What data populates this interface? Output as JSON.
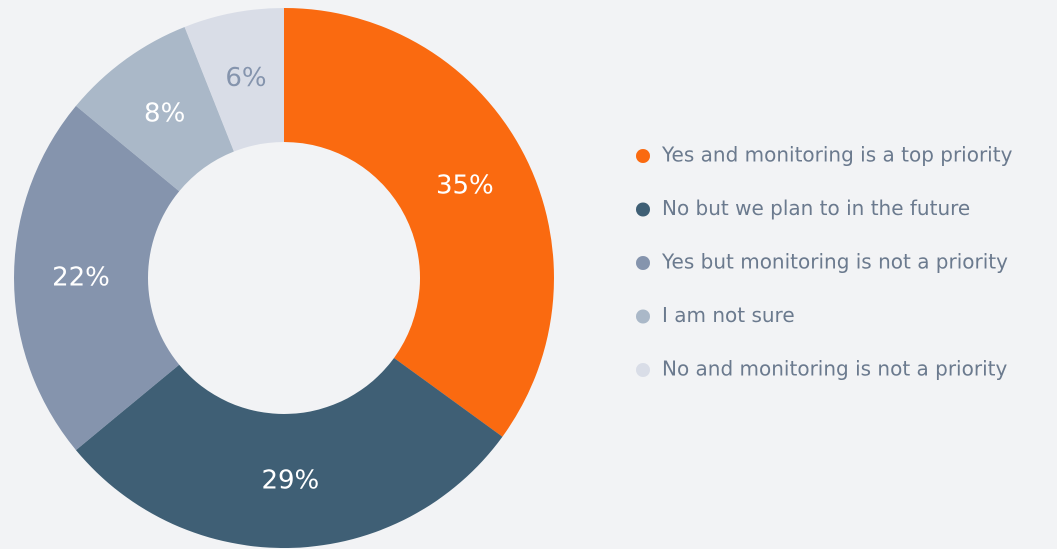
{
  "chart_data": {
    "type": "donut",
    "categories": [
      "Yes and monitoring is a top priority",
      "No but we plan to in the future",
      "Yes but monitoring is not a priority",
      "I am not sure",
      "No and monitoring is not a priority"
    ],
    "values": [
      35,
      29,
      22,
      8,
      6
    ],
    "value_labels": [
      "35%",
      "29%",
      "22%",
      "8%",
      "6%"
    ],
    "colors": [
      "#fa6a10",
      "#3f5f75",
      "#8594ad",
      "#aab8c8",
      "#d9dde7"
    ],
    "label_colors": [
      "#ffffff",
      "#ffffff",
      "#ffffff",
      "#ffffff",
      "#8594ad"
    ],
    "legend": "right"
  }
}
